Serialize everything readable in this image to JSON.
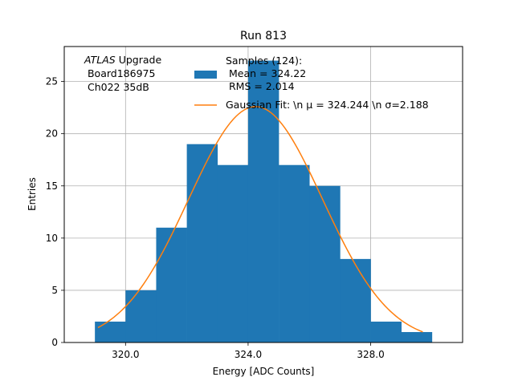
{
  "chart_data": {
    "type": "bar",
    "title": "Run 813",
    "xlabel": "Energy [ADC Counts]",
    "ylabel": "Entries",
    "xlim": [
      318.0,
      331.0
    ],
    "ylim": [
      0,
      28.35
    ],
    "grid": true,
    "bin_edges": [
      319,
      320,
      321,
      322,
      323,
      324,
      325,
      326,
      327,
      328,
      329,
      330
    ],
    "counts": [
      2,
      5,
      11,
      19,
      17,
      27,
      17,
      15,
      8,
      2,
      1
    ],
    "x_ticks": [
      320.0,
      324.0,
      328.0
    ],
    "x_tick_labels": [
      "320.0",
      "324.0",
      "328.0"
    ],
    "y_ticks": [
      0,
      5,
      10,
      15,
      20,
      25
    ],
    "y_tick_labels": [
      "0",
      "5",
      "10",
      "15",
      "20",
      "25"
    ],
    "series": [
      {
        "name": "Samples",
        "kind": "histogram",
        "color": "#1f77b4",
        "legend_lines": [
          "Samples (124):",
          " Mean = 324.22",
          " RMS = 2.014"
        ]
      },
      {
        "name": "Gaussian Fit",
        "kind": "line",
        "color": "#ff7f0e",
        "amplitude": 22.6,
        "mu": 324.244,
        "sigma": 2.188,
        "x_range": [
          319.1,
          329.7
        ],
        "legend_lines": [
          "Gaussian Fit: \\n μ = 324.244 \\n σ=2.188"
        ]
      }
    ],
    "annotation": {
      "experiment": "ATLAS",
      "tag": " Upgrade",
      "lines": [
        " Board186975",
        " Ch022 35dB"
      ]
    },
    "legend_position": "top-right"
  }
}
